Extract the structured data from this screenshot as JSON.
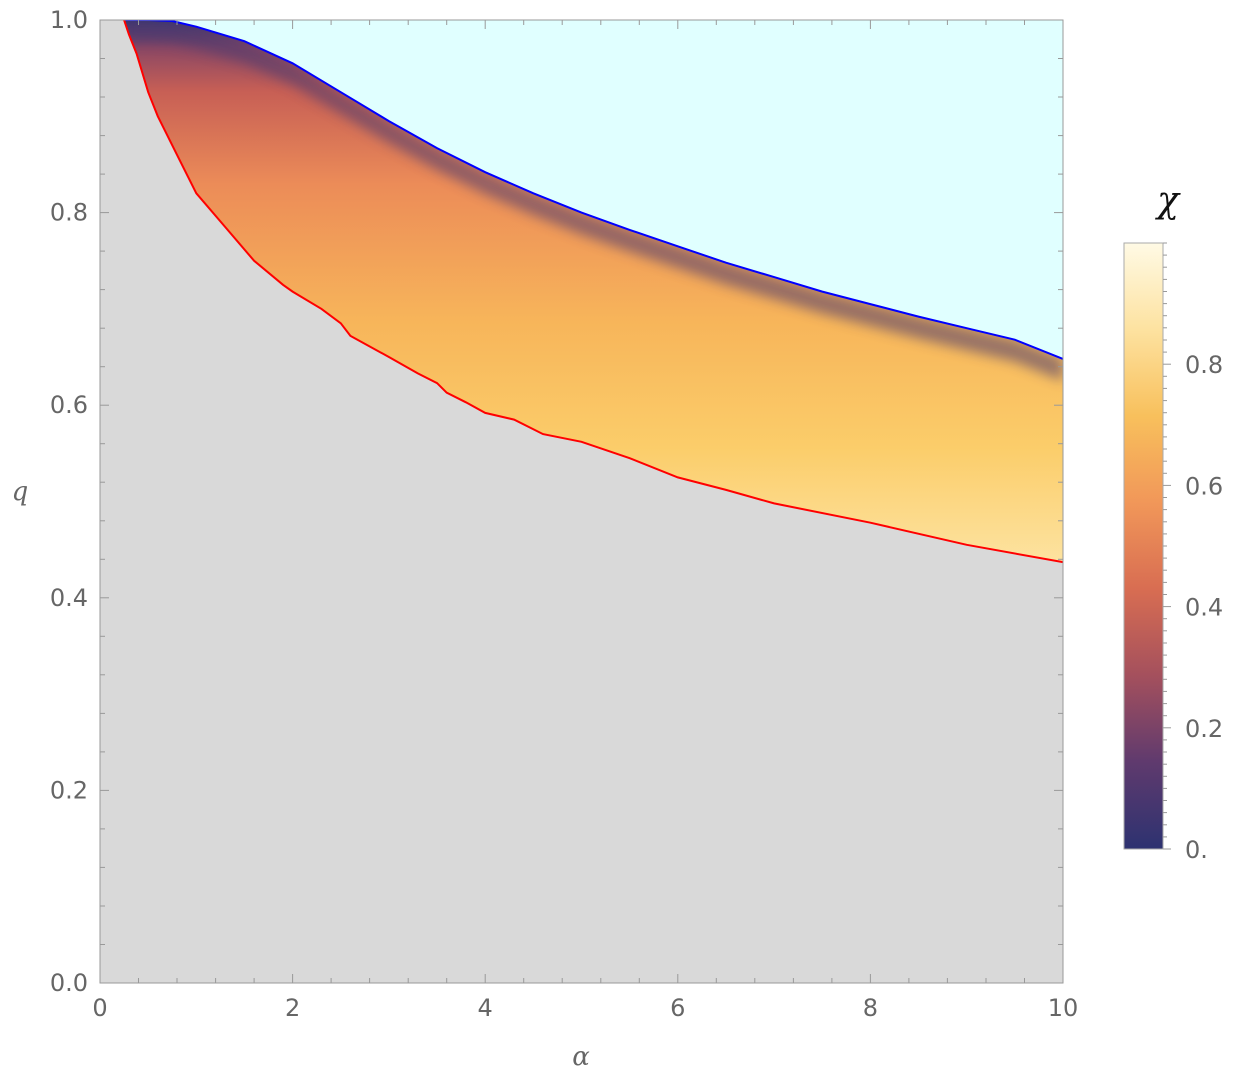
{
  "chart_data": {
    "type": "heatmap",
    "title": "",
    "xlabel": "α",
    "ylabel": "q",
    "xlim": [
      0,
      10
    ],
    "ylim": [
      0,
      1
    ],
    "x_ticks": [
      0,
      2,
      4,
      6,
      8,
      10
    ],
    "x_tick_labels": [
      "0",
      "2",
      "4",
      "6",
      "8",
      "10"
    ],
    "y_ticks": [
      0,
      0.2,
      0.4,
      0.6,
      0.8,
      1.0
    ],
    "y_tick_labels": [
      "0.0",
      "0.2",
      "0.4",
      "0.6",
      "0.8",
      "1.0"
    ],
    "grid": false,
    "colors": {
      "below_region": "#d9d9d9",
      "above_region": "#e0ffff",
      "upper_boundary": "#0000ff",
      "lower_boundary": "#ff0000"
    },
    "colorscale": [
      "#2d3270",
      "#5f3a6e",
      "#a4505d",
      "#d86d52",
      "#f19759",
      "#f8c05c",
      "#fde2a0",
      "#fffae5"
    ],
    "colorbar": {
      "title": "χ",
      "range": [
        0,
        1
      ],
      "ticks": [
        0,
        0.2,
        0.4,
        0.6,
        0.8
      ],
      "tick_labels": [
        "0.",
        "0.2",
        "0.4",
        "0.6",
        "0.8"
      ],
      "placement": "right"
    },
    "series": [
      {
        "name": "",
        "color": "#0000ff",
        "x": [
          0.25,
          0.5,
          0.75,
          1.0,
          1.5,
          2.0,
          2.5,
          3.0,
          3.5,
          4.0,
          4.5,
          5.0,
          5.5,
          6.0,
          6.5,
          7.0,
          7.5,
          8.0,
          8.5,
          9.0,
          9.5,
          10.0
        ],
        "y": [
          1.0,
          1.0,
          0.999,
          0.993,
          0.978,
          0.955,
          0.925,
          0.895,
          0.867,
          0.842,
          0.82,
          0.8,
          0.782,
          0.765,
          0.748,
          0.733,
          0.718,
          0.705,
          0.692,
          0.68,
          0.668,
          0.648
        ]
      },
      {
        "name": "",
        "color": "#ff0000",
        "x": [
          0.25,
          0.3,
          0.38,
          0.5,
          0.6,
          0.8,
          1.0,
          1.3,
          1.6,
          1.9,
          2.0,
          2.3,
          2.5,
          2.6,
          3.0,
          3.3,
          3.5,
          3.6,
          3.8,
          4.0,
          4.3,
          4.6,
          5.0,
          5.5,
          6.0,
          6.5,
          7.0,
          8.0,
          9.0,
          10.0
        ],
        "y": [
          1.0,
          0.985,
          0.965,
          0.925,
          0.9,
          0.86,
          0.82,
          0.785,
          0.75,
          0.725,
          0.718,
          0.7,
          0.685,
          0.672,
          0.65,
          0.633,
          0.623,
          0.613,
          0.603,
          0.592,
          0.585,
          0.57,
          0.562,
          0.545,
          0.525,
          0.512,
          0.498,
          0.478,
          0.455,
          0.437
        ]
      }
    ]
  }
}
